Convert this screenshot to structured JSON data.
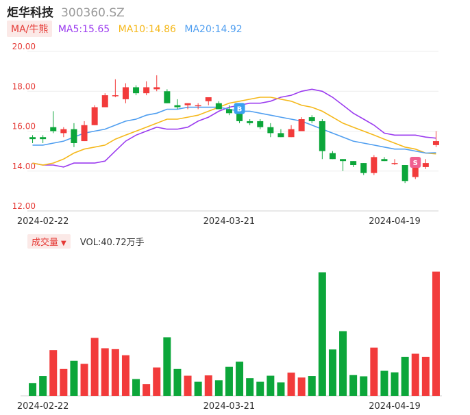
{
  "header": {
    "name": "炬华科技",
    "code": "300360.SZ"
  },
  "ma_legend": {
    "tag": "MA/牛熊",
    "ma5": "MA5:15.65",
    "ma10": "MA10:14.86",
    "ma20": "MA20:14.92"
  },
  "volume_legend": {
    "tag": "成交量",
    "caret": "▼",
    "value": "VOL:40.72万手"
  },
  "colors": {
    "up": "#f23b3b",
    "down": "#0ca63a",
    "ma5": "#9b3bef",
    "ma10": "#f5b81a",
    "ma20": "#4f9ef0",
    "axis_label": "#e53935"
  },
  "chart_data": [
    {
      "type": "candlestick",
      "title": "",
      "ylim": [
        12,
        20
      ],
      "yticks": [
        "20.00",
        "18.00",
        "16.00",
        "14.00",
        "12.00"
      ],
      "x_tick_labels": [
        {
          "index": 1,
          "label": "2024-02-22"
        },
        {
          "index": 19,
          "label": "2024-03-21"
        },
        {
          "index": 35,
          "label": "2024-04-19"
        }
      ],
      "markers": [
        {
          "index": 20,
          "label": "B",
          "color": "#3aa0f0"
        },
        {
          "index": 37,
          "label": "S",
          "color": "#f06090"
        }
      ],
      "ohlc": [
        {
          "o": 15.7,
          "h": 15.8,
          "l": 15.4,
          "c": 15.6
        },
        {
          "o": 15.7,
          "h": 15.8,
          "l": 15.4,
          "c": 15.6
        },
        {
          "o": 16.2,
          "h": 17.0,
          "l": 15.9,
          "c": 16.0
        },
        {
          "o": 15.9,
          "h": 16.2,
          "l": 15.7,
          "c": 16.1
        },
        {
          "o": 16.1,
          "h": 16.4,
          "l": 15.2,
          "c": 15.4
        },
        {
          "o": 15.5,
          "h": 16.5,
          "l": 15.5,
          "c": 16.3
        },
        {
          "o": 16.3,
          "h": 17.3,
          "l": 16.3,
          "c": 17.2
        },
        {
          "o": 17.2,
          "h": 17.9,
          "l": 17.2,
          "c": 17.8
        },
        {
          "o": 17.8,
          "h": 18.6,
          "l": 17.7,
          "c": 17.8
        },
        {
          "o": 17.6,
          "h": 18.4,
          "l": 17.4,
          "c": 18.2
        },
        {
          "o": 18.2,
          "h": 18.3,
          "l": 17.8,
          "c": 17.9
        },
        {
          "o": 17.9,
          "h": 18.5,
          "l": 17.8,
          "c": 18.2
        },
        {
          "o": 18.1,
          "h": 18.8,
          "l": 18.0,
          "c": 18.2
        },
        {
          "o": 18.0,
          "h": 18.1,
          "l": 17.4,
          "c": 17.4
        },
        {
          "o": 17.3,
          "h": 17.6,
          "l": 17.1,
          "c": 17.2
        },
        {
          "o": 17.3,
          "h": 17.4,
          "l": 17.1,
          "c": 17.4
        },
        {
          "o": 17.3,
          "h": 17.4,
          "l": 17.1,
          "c": 17.3
        },
        {
          "o": 17.5,
          "h": 17.7,
          "l": 17.3,
          "c": 17.7
        },
        {
          "o": 17.4,
          "h": 17.5,
          "l": 17.1,
          "c": 17.1
        },
        {
          "o": 17.1,
          "h": 17.3,
          "l": 16.8,
          "c": 16.9
        },
        {
          "o": 17.0,
          "h": 17.2,
          "l": 16.4,
          "c": 16.5
        },
        {
          "o": 16.5,
          "h": 16.6,
          "l": 16.3,
          "c": 16.4
        },
        {
          "o": 16.5,
          "h": 16.6,
          "l": 16.1,
          "c": 16.2
        },
        {
          "o": 16.2,
          "h": 16.4,
          "l": 15.7,
          "c": 15.9
        },
        {
          "o": 15.9,
          "h": 16.1,
          "l": 15.7,
          "c": 15.7
        },
        {
          "o": 15.7,
          "h": 16.3,
          "l": 15.7,
          "c": 16.1
        },
        {
          "o": 16.0,
          "h": 16.7,
          "l": 16.0,
          "c": 16.6
        },
        {
          "o": 16.7,
          "h": 16.8,
          "l": 16.4,
          "c": 16.5
        },
        {
          "o": 16.5,
          "h": 16.6,
          "l": 14.6,
          "c": 15.0
        },
        {
          "o": 14.9,
          "h": 15.0,
          "l": 14.6,
          "c": 14.6
        },
        {
          "o": 14.6,
          "h": 14.6,
          "l": 14.0,
          "c": 14.5
        },
        {
          "o": 14.5,
          "h": 14.5,
          "l": 14.2,
          "c": 14.3
        },
        {
          "o": 14.4,
          "h": 14.4,
          "l": 13.8,
          "c": 13.9
        },
        {
          "o": 13.9,
          "h": 14.8,
          "l": 13.8,
          "c": 14.7
        },
        {
          "o": 14.6,
          "h": 14.7,
          "l": 14.5,
          "c": 14.5
        },
        {
          "o": 14.4,
          "h": 14.6,
          "l": 14.3,
          "c": 14.4
        },
        {
          "o": 14.3,
          "h": 14.3,
          "l": 13.4,
          "c": 13.5
        },
        {
          "o": 13.7,
          "h": 14.3,
          "l": 13.6,
          "c": 14.3
        },
        {
          "o": 14.2,
          "h": 14.6,
          "l": 14.1,
          "c": 14.4
        },
        {
          "o": 15.3,
          "h": 16.0,
          "l": 15.2,
          "c": 15.5
        }
      ],
      "series": [
        {
          "name": "MA5",
          "values": [
            14.4,
            14.3,
            14.3,
            14.2,
            14.4,
            14.4,
            14.4,
            14.5,
            15.0,
            15.5,
            15.8,
            16.0,
            16.2,
            16.1,
            16.1,
            16.2,
            16.5,
            16.7,
            17.0,
            17.2,
            17.3,
            17.4,
            17.4,
            17.5,
            17.7,
            17.8,
            18.0,
            18.1,
            18.0,
            17.7,
            17.3,
            16.9,
            16.6,
            16.3,
            15.9,
            15.8,
            15.8,
            15.8,
            15.7,
            15.65
          ]
        },
        {
          "name": "MA10",
          "values": [
            14.4,
            14.3,
            14.4,
            14.6,
            14.9,
            15.1,
            15.2,
            15.3,
            15.6,
            15.8,
            16.0,
            16.2,
            16.4,
            16.6,
            16.6,
            16.7,
            16.8,
            17.0,
            17.2,
            17.4,
            17.5,
            17.6,
            17.7,
            17.7,
            17.6,
            17.5,
            17.3,
            17.2,
            17.0,
            16.7,
            16.4,
            16.2,
            16.0,
            15.8,
            15.6,
            15.4,
            15.2,
            15.1,
            14.9,
            14.86
          ]
        },
        {
          "name": "MA20",
          "values": [
            15.3,
            15.3,
            15.4,
            15.5,
            15.7,
            15.9,
            16.0,
            16.1,
            16.3,
            16.5,
            16.6,
            16.8,
            16.9,
            17.1,
            17.1,
            17.2,
            17.2,
            17.2,
            17.2,
            17.1,
            17.0,
            17.0,
            16.9,
            16.8,
            16.7,
            16.6,
            16.5,
            16.3,
            16.1,
            15.9,
            15.7,
            15.5,
            15.4,
            15.3,
            15.2,
            15.1,
            15.1,
            15.0,
            14.9,
            14.92
          ]
        }
      ]
    },
    {
      "type": "bar",
      "title": "",
      "ylabel": "",
      "unit": "万手",
      "ylim": [
        0,
        44
      ],
      "x_tick_labels": [
        {
          "index": 1,
          "label": "2024-02-22"
        },
        {
          "index": 19,
          "label": "2024-03-21"
        },
        {
          "index": 35,
          "label": "2024-04-19"
        }
      ],
      "values": [
        4.2,
        6.5,
        15.0,
        8.8,
        11.5,
        10.5,
        19.0,
        15.6,
        15.3,
        13.3,
        5.5,
        3.8,
        9.3,
        19.2,
        8.8,
        6.6,
        4.6,
        6.7,
        5.1,
        9.5,
        11.2,
        5.8,
        4.6,
        6.6,
        4.4,
        7.6,
        6.0,
        6.5,
        40.5,
        15.2,
        21.2,
        6.8,
        6.4,
        15.8,
        8.2,
        7.7,
        12.8,
        13.8,
        12.8,
        40.72
      ],
      "direction": [
        "down",
        "down",
        "up",
        "up",
        "down",
        "up",
        "up",
        "up",
        "up",
        "up",
        "down",
        "up",
        "up",
        "down",
        "down",
        "up",
        "down",
        "up",
        "down",
        "down",
        "down",
        "down",
        "down",
        "down",
        "down",
        "up",
        "up",
        "down",
        "down",
        "down",
        "down",
        "down",
        "down",
        "up",
        "down",
        "down",
        "down",
        "up",
        "up",
        "up"
      ]
    }
  ]
}
